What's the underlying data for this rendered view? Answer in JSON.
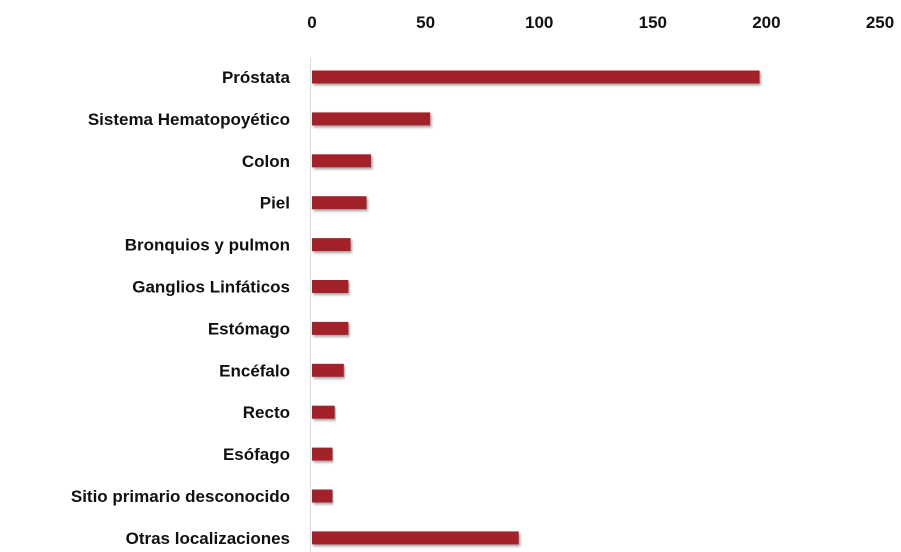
{
  "chart_data": {
    "type": "bar",
    "orientation": "horizontal",
    "categories": [
      "Próstata",
      "Sistema Hematopoyético",
      "Colon",
      "Piel",
      "Bronquios y pulmon",
      "Ganglios Linfáticos",
      "Estómago",
      "Encéfalo",
      "Recto",
      "Esófago",
      "Sitio primario desconocido",
      "Otras localizaciones"
    ],
    "values": [
      197,
      52,
      26,
      24,
      17,
      16,
      16,
      14,
      10,
      9,
      9,
      91
    ],
    "title": "",
    "xlabel": "",
    "ylabel": "",
    "xlim": [
      0,
      250
    ],
    "xticks": [
      0,
      50,
      100,
      150,
      200,
      250
    ],
    "xtick_labels": [
      "0",
      "50",
      "100",
      "150",
      "200",
      "250"
    ],
    "x_axis_position": "top",
    "grid": false,
    "legend": "none",
    "bar_color": "#a3202b"
  }
}
